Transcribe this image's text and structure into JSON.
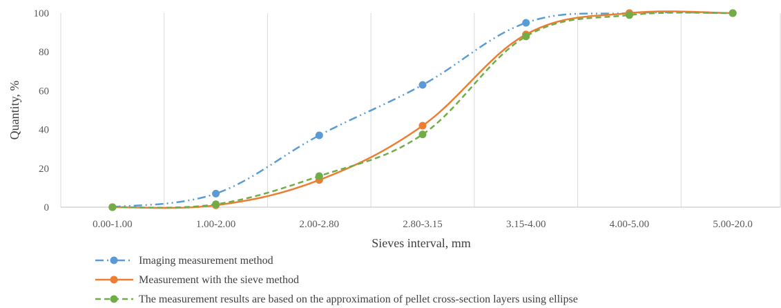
{
  "chart_data": {
    "type": "line",
    "title": "",
    "xlabel": "Sieves interval, mm",
    "ylabel": "Quantity, %",
    "categories": [
      "0.00-1.00",
      "1.00-2.00",
      "2.00-2.80",
      "2.80-3.15",
      "3.15-4.00",
      "4.00-5.00",
      "5.00-20.0"
    ],
    "ylim": [
      0,
      100
    ],
    "yticks": [
      "0",
      "20",
      "40",
      "60",
      "80",
      "100"
    ],
    "grid": "vertical",
    "legend_position": "bottom-left",
    "series": [
      {
        "name": "Imaging measurement method",
        "values": [
          0,
          7,
          37,
          63,
          95,
          100,
          100
        ],
        "color": "#5B9BD5",
        "style": "dash-dot-dot",
        "marker": "circle"
      },
      {
        "name": "Measurement with the sieve method",
        "values": [
          0,
          1,
          14,
          42,
          89,
          100,
          100
        ],
        "color": "#ED7D31",
        "style": "solid",
        "marker": "circle"
      },
      {
        "name": "The measurement results are based on the approximation of pellet cross-section layers using ellipse",
        "values": [
          0,
          1.5,
          16,
          37.5,
          88,
          99,
          100
        ],
        "color": "#70AD47",
        "style": "dashed",
        "marker": "circle"
      }
    ]
  }
}
